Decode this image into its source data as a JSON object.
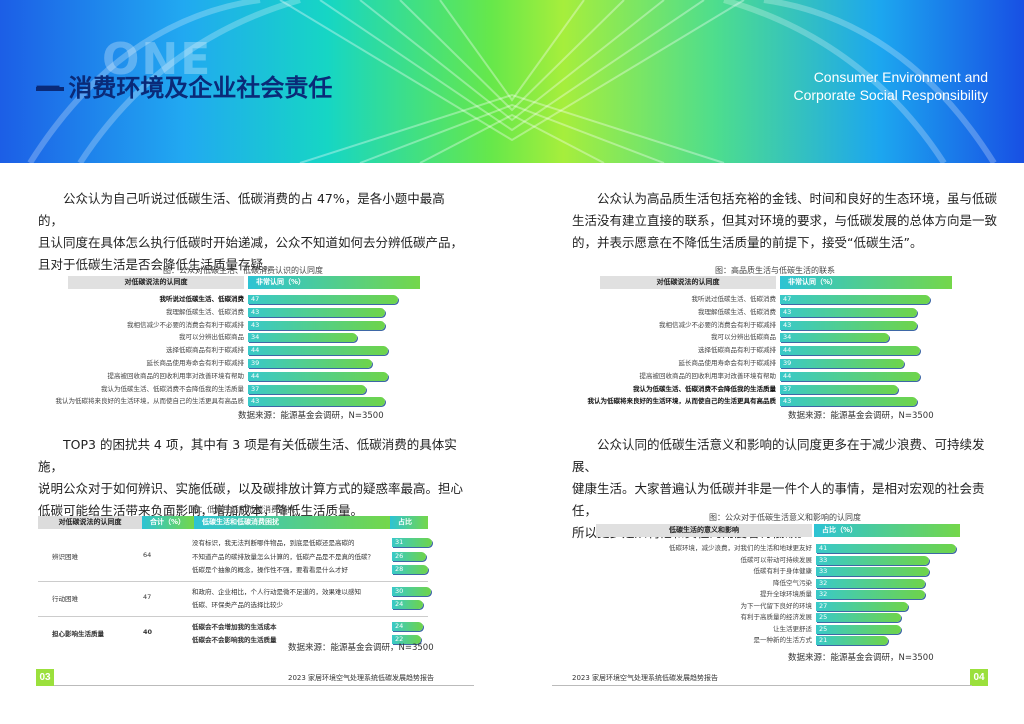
{
  "header": {
    "section_watermark": "ONE",
    "title": "一 消费环境及企业社会责任",
    "title_en_line1": "Consumer Environment and",
    "title_en_line2": "Corporate Social Responsibility"
  },
  "left": {
    "para1": [
      "公众认为自己听说过低碳生活、低碳消费的占 47%，是各小题中最高的，",
      "且认同度在具体怎么执行低碳时开始递减，公众不知道如何去分辨低碳产品，",
      "且对于低碳生活是否会降低生活质量存疑。"
    ],
    "chart1": {
      "title": "图：公众对低碳生活、低碳消费认识的认同度",
      "header_left": "对低碳说法的认同度",
      "header_right": "非常认同（%）",
      "rows": [
        {
          "label": "我听说过低碳生活、低碳消费",
          "value": 47,
          "bold": true
        },
        {
          "label": "我理解低碳生活、低碳消费",
          "value": 43,
          "bold": false
        },
        {
          "label": "我相信减少不必要的消费会有利于碳减排",
          "value": 43,
          "bold": false
        },
        {
          "label": "我可以分辨出低碳商品",
          "value": 34,
          "bold": false
        },
        {
          "label": "选择低碳商品有利于碳减排",
          "value": 44,
          "bold": false
        },
        {
          "label": "延长商品使用寿命会有利于碳减排",
          "value": 39,
          "bold": false
        },
        {
          "label": "提高被回收商品的回收利用率对改善环境有帮助",
          "value": 44,
          "bold": false
        },
        {
          "label": "我认为低碳生活、低碳消费不会降低我的生活质量",
          "value": 37,
          "bold": false
        },
        {
          "label": "我认为低碳将来良好的生活环境，从而使自己的生活更具有高品质",
          "value": 43,
          "bold": false
        }
      ],
      "source": "数据来源：能源基金会调研，N=3500"
    },
    "para2": [
      "TOP3 的困扰共 4 项，其中有 3 项是有关低碳生活、低碳消费的具体实施，",
      "说明公众对于如何辨识、实施低碳，以及碳排放计算方式的疑惑率最高。担心",
      "低碳可能给生活带来负面影响，增加成本，降低生活质量。"
    ],
    "table": {
      "title": "图：低碳生活和低碳消费困扰",
      "col1": "对低碳说法的认同度",
      "col2": "合计（%）",
      "col3": "低碳生活和低碳消费困扰",
      "col4": "占比（%）",
      "groups": [
        {
          "name": "辨识困难",
          "total": "64",
          "bold": false,
          "items": [
            {
              "text": "没有标识，我无法判断哪件物品，到底是低碳还是高碳的",
              "value": "31"
            },
            {
              "text": "不知道产品的碳排放量怎么计算的，低碳产品是不是真的低碳？",
              "value": "26"
            },
            {
              "text": "低碳是个抽象的概念，操作性不强，要看看是什么才好",
              "value": "28"
            }
          ]
        },
        {
          "name": "行动困难",
          "total": "47",
          "bold": false,
          "items": [
            {
              "text": "和政府、企业相比，个人行动是微不足道的，效果难以感知",
              "value": "30"
            },
            {
              "text": "低碳、环保类产品的选择比较少",
              "value": "24"
            }
          ]
        },
        {
          "name": "担心影响生活质量",
          "total": "40",
          "bold": true,
          "items": [
            {
              "text": "低碳会不会增加我的生活成本",
              "value": "24"
            },
            {
              "text": "低碳会不会影响我的生活质量",
              "value": "22"
            }
          ]
        }
      ],
      "source": "数据来源：能源基金会调研，N=3500"
    },
    "footer": "2023 家居环境空气处理系统低碳发展趋势报告",
    "page": "03"
  },
  "right": {
    "para1": [
      "公众认为高品质生活包括充裕的金钱、时间和良好的生态环境，虽与低碳",
      "生活没有建立直接的联系，但其对环境的要求，与低碳发展的总体方向是一致",
      "的，并表示愿意在不降低生活质量的前提下，接受“低碳生活”。"
    ],
    "chart2": {
      "title": "图：高品质生活与低碳生活的联系",
      "header_left": "对低碳说法的认同度",
      "header_right": "非常认同（%）",
      "rows": [
        {
          "label": "我听说过低碳生活、低碳消费",
          "value": 47,
          "bold": false
        },
        {
          "label": "我理解低碳生活、低碳消费",
          "value": 43,
          "bold": false
        },
        {
          "label": "我相信减少不必要的消费会有利于碳减排",
          "value": 43,
          "bold": false
        },
        {
          "label": "我可以分辨出低碳商品",
          "value": 34,
          "bold": false
        },
        {
          "label": "选择低碳商品有利于碳减排",
          "value": 44,
          "bold": false
        },
        {
          "label": "延长商品使用寿命会有利于碳减排",
          "value": 39,
          "bold": false
        },
        {
          "label": "提高被回收商品的回收利用率对改善环境有帮助",
          "value": 44,
          "bold": false
        },
        {
          "label": "我认为低碳生活、低碳消费不会降低我的生活质量",
          "value": 37,
          "bold": true
        },
        {
          "label": "我认为低碳将来良好的生活环境，从而使自己的生活更具有高品质",
          "value": 43,
          "bold": true
        }
      ],
      "source": "数据来源：能源基金会调研，N=3500"
    },
    "para2": [
      "公众认同的低碳生活意义和影响的认同度更多在于减少浪费、可持续发展、",
      "健康生活。大家普遍认为低碳并非是一件个人的事情，是相对宏观的社会责任，",
      "所以更多是从利他和责任的角度看待低碳。"
    ],
    "chart3": {
      "title": "图：公众对于低碳生活意义和影响的认同度",
      "header_left": "低碳生活的意义和影响",
      "header_right": "占比（%）",
      "rows": [
        {
          "label": "低碳环境，减少浪费，对我们的生活和地球更友好",
          "value": 41
        },
        {
          "label": "低碳可以带动可持续发展",
          "value": 33
        },
        {
          "label": "低碳有利于身体健康",
          "value": 33
        },
        {
          "label": "降低空气污染",
          "value": 32
        },
        {
          "label": "提升全球环境质量",
          "value": 32
        },
        {
          "label": "为下一代留下良好的环境",
          "value": 27
        },
        {
          "label": "有利于高质量的经济发展",
          "value": 25
        },
        {
          "label": "让生活更舒适",
          "value": 25
        },
        {
          "label": "是一种新的生活方式",
          "value": 21
        }
      ],
      "source": "数据来源：能源基金会调研，N=3500"
    },
    "footer": "2023 家居环境空气处理系统低碳发展趋势报告",
    "page": "04"
  },
  "colors": {
    "accent_green": "#9be03c",
    "bar_start": "#39c9c9",
    "bar_end": "#6ed44a",
    "title_blue": "#0a2a78"
  }
}
